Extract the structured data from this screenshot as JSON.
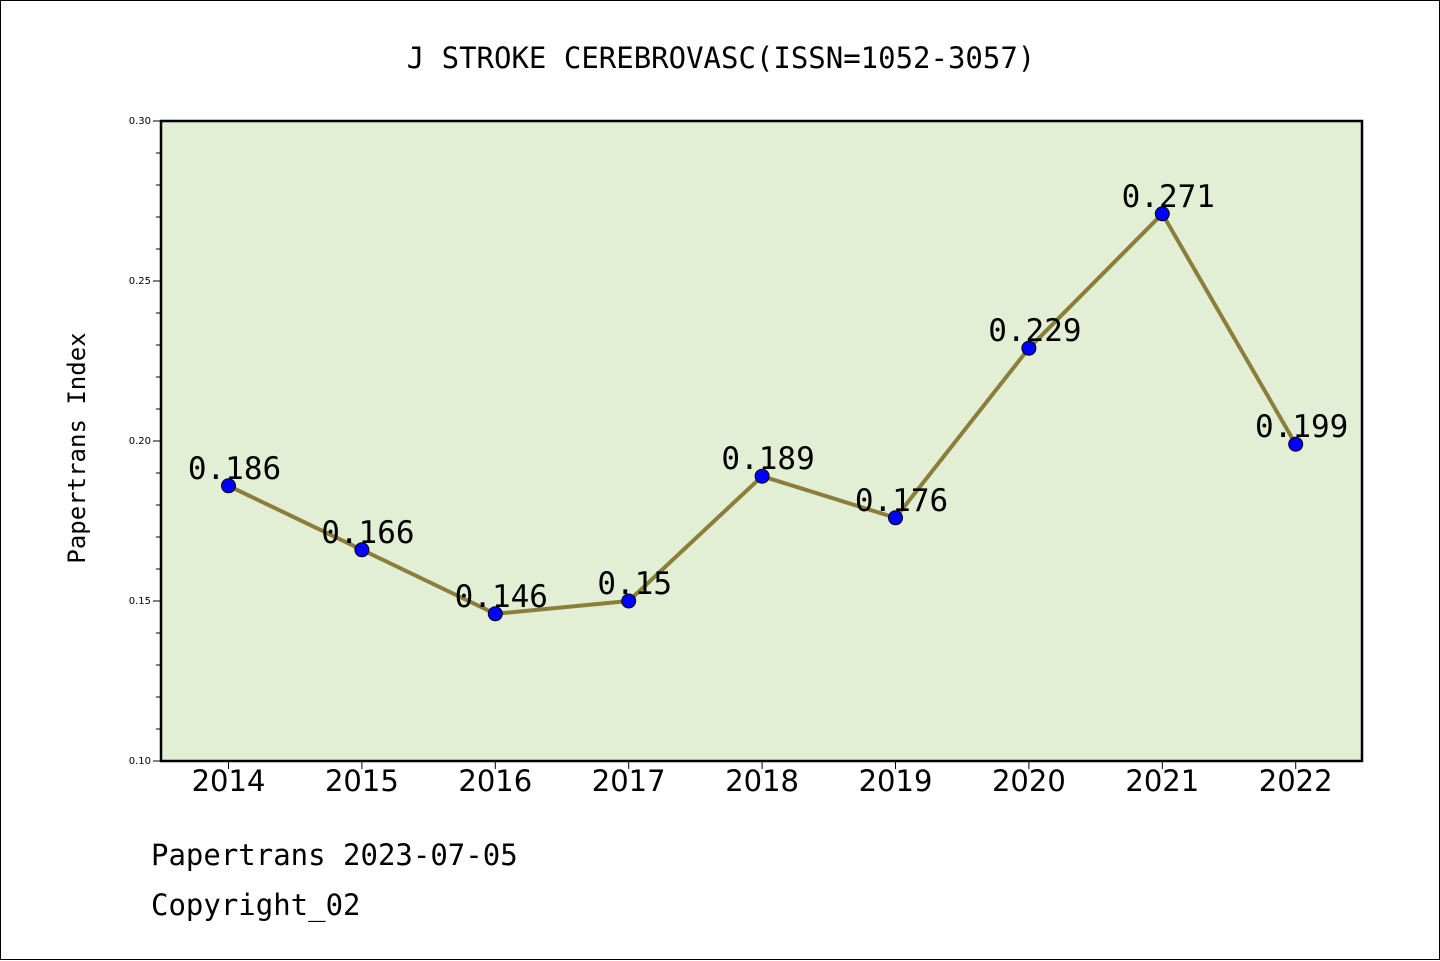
{
  "chart_data": {
    "type": "line",
    "title": "J STROKE CEREBROVASC(ISSN=1052-3057)",
    "xlabel": "",
    "ylabel": "Papertrans Index",
    "categories": [
      "2014",
      "2015",
      "2016",
      "2017",
      "2018",
      "2019",
      "2020",
      "2021",
      "2022"
    ],
    "series": [
      {
        "values": [
          0.186,
          0.166,
          0.146,
          0.15,
          0.189,
          0.176,
          0.229,
          0.271,
          0.199
        ],
        "labels": [
          "0.186",
          "0.166",
          "0.146",
          "0.15",
          "0.189",
          "0.176",
          "0.229",
          "0.271",
          "0.199"
        ]
      }
    ],
    "ylim": [
      0.1,
      0.3
    ],
    "yticks": [
      "0.10",
      "0.15",
      "0.20",
      "0.25",
      "0.30"
    ],
    "grid": false,
    "colors": {
      "plot_background": "#e2efd5",
      "line": "#8b7d3a",
      "marker": "#0000ff"
    }
  },
  "footer": {
    "line1": "Papertrans 2023-07-05",
    "line2": "Copyright_02"
  }
}
